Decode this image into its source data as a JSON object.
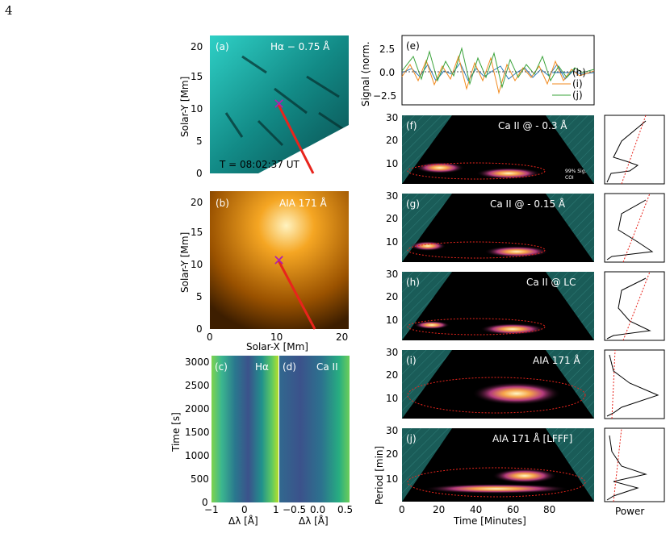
{
  "page": {
    "number": "4"
  },
  "panels": {
    "a": {
      "tag": "(a)",
      "title": "Hα − 0.75 Å",
      "timestamp": "T = 08:02:37 UT"
    },
    "b": {
      "tag": "(b)",
      "title": "AIA 171 Å"
    },
    "c": {
      "tag": "(c)",
      "title": "Hα"
    },
    "d": {
      "tag": "(d)",
      "title": "Ca II"
    },
    "e": {
      "tag": "(e)",
      "legend": [
        "(h)",
        "(i)",
        "(j)"
      ]
    },
    "f": {
      "tag": "(f)",
      "title": "Ca II @ - 0.3 Å",
      "legend": [
        "99% Sig.",
        "COI"
      ]
    },
    "g": {
      "tag": "(g)",
      "title": "Ca II @ - 0.15 Å"
    },
    "h": {
      "tag": "(h)",
      "title": "Ca II @ LC"
    },
    "i": {
      "tag": "(i)",
      "title": "AIA 171 Å"
    },
    "j": {
      "tag": "(j)",
      "title": "AIA 171 Å [LFFF]"
    }
  },
  "axes": {
    "solar_y": "Solar-Y [Mm]",
    "solar_x": "Solar-X [Mm]",
    "time_s": "Time [s]",
    "dlambda": "Δλ [Å]",
    "signal": "Signal (norm.",
    "period": "Period [min]",
    "time_min": "Time [Minutes]",
    "power": "Power"
  },
  "ticks": {
    "solar_y": [
      "0",
      "5",
      "10",
      "15",
      "20"
    ],
    "solar_x": [
      "0",
      "10",
      "20"
    ],
    "time_s": [
      "0",
      "500",
      "1000",
      "1500",
      "2000",
      "2500",
      "3000"
    ],
    "dlambda_c": [
      "−1",
      "0",
      "1"
    ],
    "dlambda_d": [
      "−0.5",
      "0.0",
      "0.5"
    ],
    "signal": [
      "2.5",
      "0.0",
      "−2.5"
    ],
    "period": [
      "10",
      "20",
      "30"
    ],
    "time_min": [
      "0",
      "20",
      "40",
      "60",
      "80"
    ]
  },
  "colors": {
    "ha_map": "#1aa6a0",
    "aia_map": "#e8930c",
    "trace_h": "#2a7ab9",
    "trace_i": "#f28a1e",
    "trace_j": "#3aa33a",
    "marker": "#b01fb0",
    "slit": "#e8241c"
  }
}
